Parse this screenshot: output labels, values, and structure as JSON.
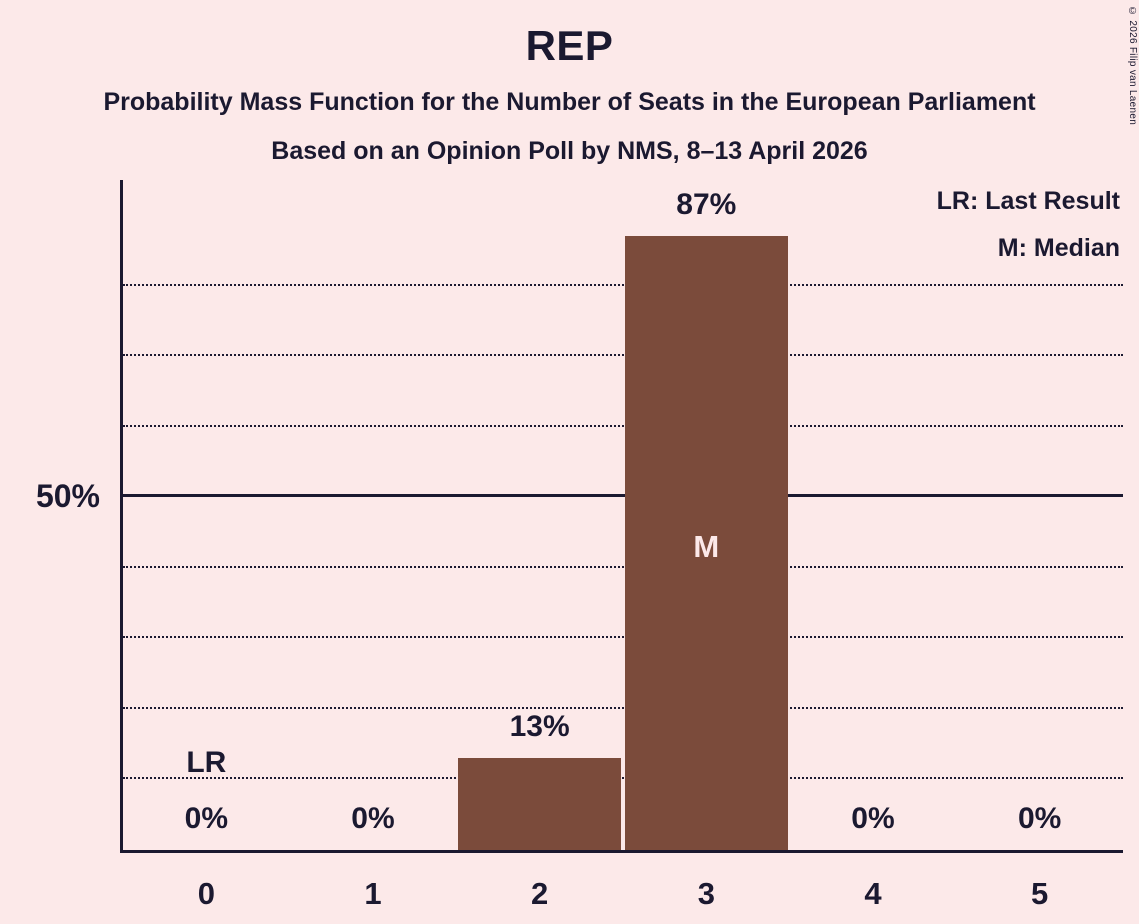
{
  "header": {
    "title": "REP",
    "subtitle": "Probability Mass Function for the Number of Seats in the European Parliament",
    "source": "Based on an Opinion Poll by NMS, 8–13 April 2026"
  },
  "legend": {
    "last_result": "LR: Last Result",
    "median": "M: Median"
  },
  "footer": {
    "copyright": "© 2026 Filip van Laenen"
  },
  "colors": {
    "background": "#fce9e9",
    "bar": "#7b4b3b",
    "text": "#1b1930",
    "bar_label": "#fce9e9"
  },
  "chart_data": {
    "type": "bar",
    "title": "REP",
    "categories": [
      "0",
      "1",
      "2",
      "3",
      "4",
      "5"
    ],
    "values": [
      0,
      0,
      13,
      87,
      0,
      0
    ],
    "value_labels": [
      "0%",
      "0%",
      "13%",
      "87%",
      "0%",
      "0%"
    ],
    "y_axis_label": "50%",
    "ylim": [
      0,
      95
    ],
    "gridlines": [
      10,
      20,
      30,
      40,
      60,
      70,
      80
    ],
    "solid_gridline": 50,
    "grid": "dotted",
    "legend_position": "top-right",
    "annotations": [
      {
        "text": "LR",
        "category": "0",
        "position": "above-value-label",
        "meaning": "Last Result"
      },
      {
        "text": "M",
        "category": "3",
        "position": "inside-bar",
        "meaning": "Median"
      }
    ]
  }
}
